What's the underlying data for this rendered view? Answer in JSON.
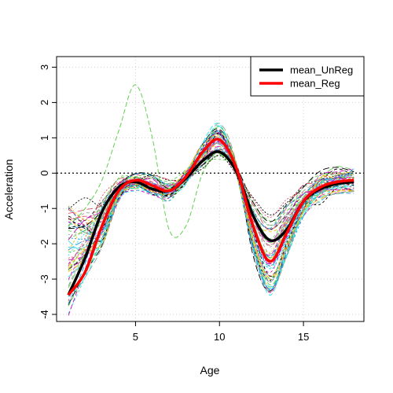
{
  "chart_data": {
    "type": "line",
    "title": "",
    "xlabel": "Age",
    "ylabel": "Acceleration",
    "xlim": [
      0.3,
      18.6
    ],
    "ylim": [
      -4.2,
      3.3
    ],
    "x_ticks": [
      5,
      10,
      15
    ],
    "y_ticks": [
      -4,
      -3,
      -2,
      -1,
      0,
      1,
      2,
      3
    ],
    "grid": true,
    "reference_line": {
      "y": 0,
      "style": "dotted"
    },
    "legend_position": "top-right",
    "background_curves": {
      "count": 54,
      "style": "dashed",
      "palette": [
        "#000000",
        "#DF536B",
        "#61D04F",
        "#2297E6",
        "#28E2E5",
        "#CD0BBC",
        "#F5C710",
        "#9E9E9E"
      ],
      "x": [
        1.0,
        2.0,
        3.0,
        4.0,
        5.0,
        6.0,
        7.0,
        8.0,
        9.0,
        10.0,
        11.0,
        12.0,
        13.0,
        14.0,
        15.0,
        16.0,
        17.0,
        18.0
      ],
      "base": [
        -3.4,
        -2.8,
        -1.4,
        -0.5,
        -0.25,
        -0.35,
        -0.45,
        -0.1,
        0.5,
        0.9,
        0.1,
        -1.5,
        -2.4,
        -1.6,
        -0.8,
        -0.4,
        -0.25,
        -0.2
      ],
      "highlight": {
        "color": "#61D04F",
        "values": [
          -1.5,
          -1.0,
          -0.2,
          1.2,
          2.5,
          1.0,
          -1.6,
          -1.5,
          0.0,
          0.6,
          0.1,
          -1.4,
          -2.4,
          -1.6,
          -0.8,
          -0.4,
          -0.25,
          -0.2
        ]
      }
    },
    "series": [
      {
        "name": "mean_UnReg",
        "color": "#000000",
        "x": [
          1.0,
          2.0,
          3.0,
          4.0,
          5.0,
          6.0,
          7.0,
          8.0,
          9.0,
          10.0,
          11.0,
          12.0,
          13.0,
          14.0,
          15.0,
          16.0,
          17.0,
          18.0
        ],
        "values": [
          -3.45,
          -2.4,
          -1.1,
          -0.4,
          -0.25,
          -0.45,
          -0.5,
          -0.15,
          0.35,
          0.6,
          0.05,
          -1.2,
          -1.9,
          -1.6,
          -0.8,
          -0.45,
          -0.3,
          -0.25
        ]
      },
      {
        "name": "mean_Reg",
        "color": "#FF0000",
        "x": [
          1.0,
          2.0,
          3.0,
          4.0,
          5.0,
          6.0,
          7.0,
          8.0,
          9.0,
          10.0,
          11.0,
          12.0,
          13.0,
          14.0,
          15.0,
          16.0,
          17.0,
          18.0
        ],
        "values": [
          -3.45,
          -2.8,
          -1.5,
          -0.5,
          -0.2,
          -0.35,
          -0.5,
          -0.1,
          0.6,
          0.95,
          0.15,
          -1.5,
          -2.5,
          -1.7,
          -0.8,
          -0.4,
          -0.25,
          -0.2
        ]
      }
    ]
  }
}
